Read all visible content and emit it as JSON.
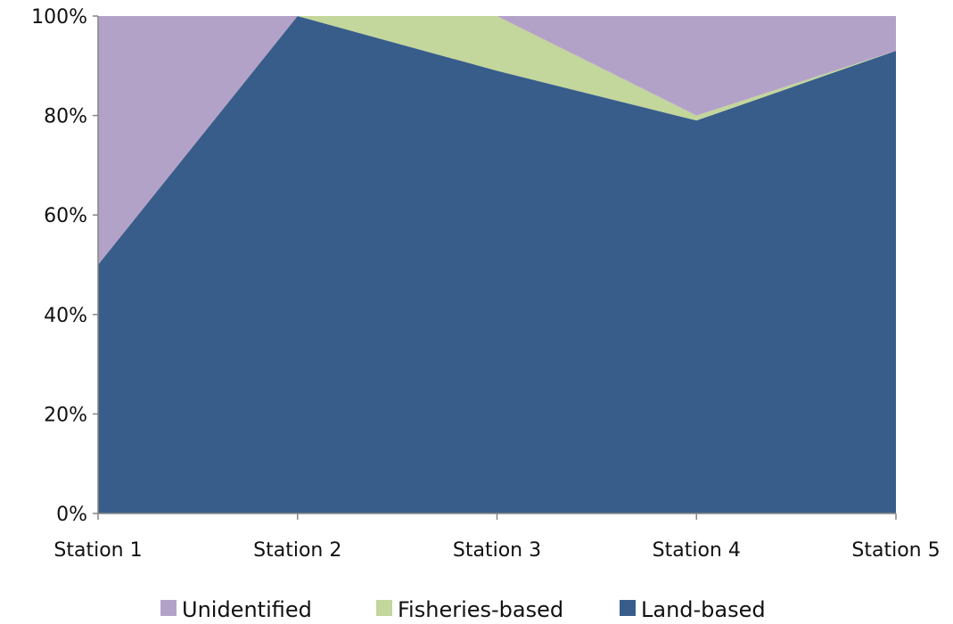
{
  "chart_data": {
    "type": "area",
    "stacked": "percent",
    "categories": [
      "Station 1",
      "Station 2",
      "Station 3",
      "Station 4",
      "Station 5"
    ],
    "series": [
      {
        "name": "Land-based",
        "color": "#385d8a",
        "values": [
          50,
          100,
          89,
          79,
          93
        ]
      },
      {
        "name": "Fisheries-based",
        "color": "#c3d69b",
        "values": [
          0,
          0,
          11,
          1,
          0
        ]
      },
      {
        "name": "Unidentified",
        "color": "#b3a2c7",
        "values": [
          50,
          0,
          0,
          20,
          7
        ]
      }
    ],
    "y_ticks": [
      "0%",
      "20%",
      "40%",
      "60%",
      "80%",
      "100%"
    ],
    "ylim": [
      0,
      100
    ],
    "grid": false,
    "legend": {
      "position": "bottom",
      "order": [
        "Unidentified",
        "Fisheries-based",
        "Land-based"
      ]
    }
  }
}
